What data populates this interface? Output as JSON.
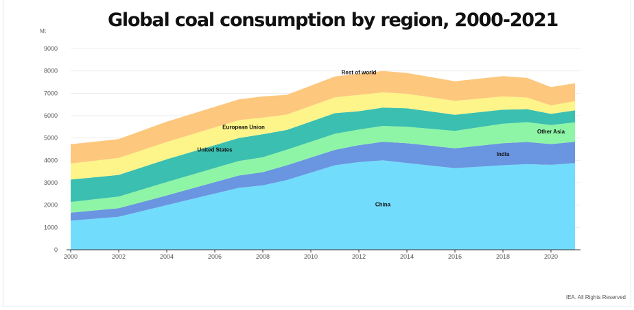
{
  "title": "Global coal consumption by region, 2000-2021",
  "unit_label": "Mt",
  "credit": "IEA. All Rights Reserved",
  "chart_data": {
    "type": "area",
    "stacked": true,
    "title": "Global coal consumption by region, 2000-2021",
    "ylabel": "Mt",
    "xlim": [
      2000,
      2021
    ],
    "ylim": [
      0,
      9000
    ],
    "x_ticks": [
      "2000",
      "2002",
      "2004",
      "2006",
      "2008",
      "2010",
      "2012",
      "2014",
      "2016",
      "2018",
      "2020"
    ],
    "y_ticks": [
      "0",
      "1000",
      "2000",
      "3000",
      "4000",
      "5000",
      "6000",
      "7000",
      "8000",
      "9000"
    ],
    "grid": true,
    "legend": "none",
    "x": [
      2000,
      2002,
      2004,
      2007,
      2008,
      2009,
      2011,
      2012,
      2013,
      2014,
      2016,
      2018,
      2019,
      2020,
      2021
    ],
    "series": [
      {
        "name": "China",
        "color": "#72dcfd",
        "label_at": [
          2013,
          1950
        ],
        "values": [
          1300,
          1480,
          2000,
          2770,
          2880,
          3120,
          3780,
          3920,
          4000,
          3880,
          3650,
          3780,
          3830,
          3800,
          3880
        ]
      },
      {
        "name": "India",
        "color": "#6a95e0",
        "label_at": [
          2018,
          4200
        ],
        "values": [
          360,
          380,
          430,
          550,
          590,
          660,
          690,
          760,
          830,
          890,
          890,
          990,
          990,
          930,
          950
        ]
      },
      {
        "name": "Other Asia",
        "color": "#8ef5a6",
        "label_at": [
          2020,
          5200
        ],
        "values": [
          480,
          520,
          600,
          650,
          670,
          700,
          720,
          700,
          710,
          730,
          780,
          870,
          890,
          850,
          870
        ]
      },
      {
        "name": "United States",
        "color": "#3bbfb0",
        "label_at": [
          2006,
          4400
        ],
        "values": [
          1000,
          970,
          1020,
          1030,
          1030,
          880,
          920,
          820,
          820,
          830,
          720,
          630,
          580,
          500,
          540
        ]
      },
      {
        "name": "European Union",
        "color": "#fdf48a",
        "label_at": [
          2007.2,
          5400
        ],
        "values": [
          720,
          760,
          770,
          800,
          740,
          690,
          710,
          730,
          680,
          650,
          620,
          590,
          520,
          380,
          410
        ]
      },
      {
        "name": "Rest of world",
        "color": "#fdc77e",
        "label_at": [
          2012,
          7850
        ],
        "values": [
          860,
          840,
          910,
          930,
          950,
          880,
          930,
          950,
          960,
          930,
          880,
          910,
          880,
          820,
          800
        ]
      }
    ]
  }
}
